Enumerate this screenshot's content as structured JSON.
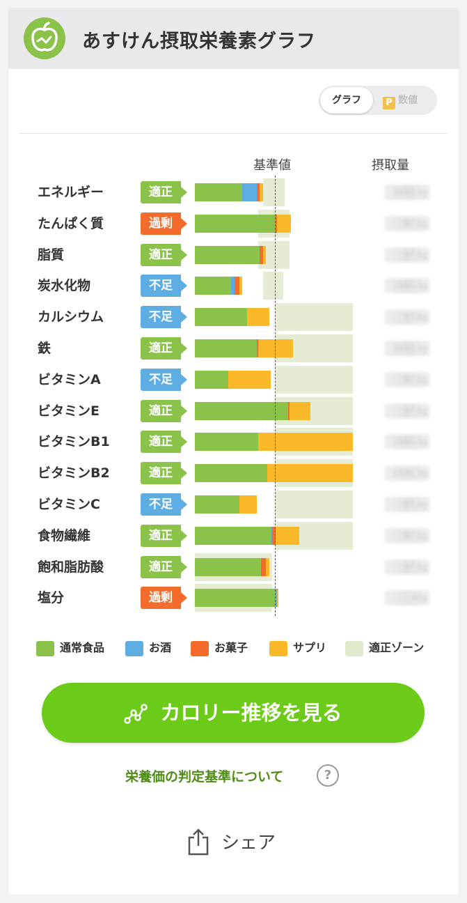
{
  "header": {
    "title": "あすけん摂取栄養素グラフ",
    "logo_icon": "apple-logo-icon"
  },
  "toggle": {
    "graph_label": "グラフ",
    "value_label": "数値",
    "value_icon": "p-icon",
    "value_icon_text": "P",
    "selected": "グラフ"
  },
  "columns": {
    "standard": "基準値",
    "intake": "摂取量"
  },
  "colors": {
    "normal_food": "#8bc34a",
    "alcohol": "#5dade2",
    "snacks": "#f36c2b",
    "supplement": "#fbb829",
    "zone": "#dfeacd",
    "status_ok": "#8bc34a",
    "status_over": "#f36c2b",
    "status_under": "#5dade2"
  },
  "nutrients": [
    {
      "name": "エネルギー",
      "status": "適正",
      "status_type": "ok",
      "intake_blurred": "2440.3g",
      "normal": 0.3,
      "alcohol": 0.09,
      "snacks": 0.02,
      "supplement": 0.02,
      "zone_from": 0.43,
      "zone_to": 0.57
    },
    {
      "name": "たんぱく質",
      "status": "過剰",
      "status_type": "over",
      "intake_blurred": "97.0g",
      "normal": 0.51,
      "alcohol": 0.0,
      "snacks": 0.01,
      "supplement": 0.09,
      "zone_from": 0.4,
      "zone_to": 0.6
    },
    {
      "name": "脂質",
      "status": "適正",
      "status_type": "ok",
      "intake_blurred": "97.0g",
      "normal": 0.41,
      "alcohol": 0.0,
      "snacks": 0.02,
      "supplement": 0.02,
      "zone_from": 0.4,
      "zone_to": 0.6
    },
    {
      "name": "炭水化物",
      "status": "不足",
      "status_type": "under",
      "intake_blurred": "2440.3g",
      "normal": 0.23,
      "alcohol": 0.02,
      "snacks": 0.03,
      "supplement": 0.02,
      "zone_from": 0.43,
      "zone_to": 0.56
    },
    {
      "name": "カルシウム",
      "status": "不足",
      "status_type": "under",
      "intake_blurred": "97.0g",
      "normal": 0.33,
      "alcohol": 0.0,
      "snacks": 0.0,
      "supplement": 0.14,
      "zone_from": 0.51,
      "zone_to": 1.0
    },
    {
      "name": "鉄",
      "status": "適正",
      "status_type": "ok",
      "intake_blurred": "2440.3g",
      "normal": 0.39,
      "alcohol": 0.0,
      "snacks": 0.01,
      "supplement": 0.22,
      "zone_from": 0.51,
      "zone_to": 1.0
    },
    {
      "name": "ビタミンA",
      "status": "不足",
      "status_type": "under",
      "intake_blurred": "97.0g",
      "normal": 0.21,
      "alcohol": 0.0,
      "snacks": 0.0,
      "supplement": 0.27,
      "zone_from": 0.51,
      "zone_to": 1.0
    },
    {
      "name": "ビタミンE",
      "status": "適正",
      "status_type": "ok",
      "intake_blurred": "97.0g",
      "normal": 0.59,
      "alcohol": 0.0,
      "snacks": 0.01,
      "supplement": 0.13,
      "zone_from": 0.51,
      "zone_to": 1.0
    },
    {
      "name": "ビタミンB1",
      "status": "適正",
      "status_type": "ok",
      "intake_blurred": "2440.3g",
      "normal": 0.4,
      "alcohol": 0.0,
      "snacks": 0.0,
      "supplement": 0.6,
      "zone_from": 0.51,
      "zone_to": 1.0
    },
    {
      "name": "ビタミンB2",
      "status": "適正",
      "status_type": "ok",
      "intake_blurred": "2440.3g",
      "normal": 0.46,
      "alcohol": 0.0,
      "snacks": 0.0,
      "supplement": 0.54,
      "zone_from": 0.51,
      "zone_to": 1.0
    },
    {
      "name": "ビタミンC",
      "status": "不足",
      "status_type": "under",
      "intake_blurred": "97.0g",
      "normal": 0.28,
      "alcohol": 0.0,
      "snacks": 0.0,
      "supplement": 0.11,
      "zone_from": 0.51,
      "zone_to": 1.0
    },
    {
      "name": "食物繊維",
      "status": "適正",
      "status_type": "ok",
      "intake_blurred": "97.0g",
      "normal": 0.48,
      "alcohol": 0.01,
      "snacks": 0.02,
      "supplement": 0.15,
      "zone_from": 0.51,
      "zone_to": 1.0
    },
    {
      "name": "飽和脂肪酸",
      "status": "適正",
      "status_type": "ok",
      "intake_blurred": "97.0g",
      "normal": 0.42,
      "alcohol": 0.0,
      "snacks": 0.03,
      "supplement": 0.02,
      "zone_from": 0.0,
      "zone_to": 0.49
    },
    {
      "name": "塩分",
      "status": "過剰",
      "status_type": "over",
      "intake_blurred": "40g",
      "normal": 0.51,
      "alcohol": 0.01,
      "snacks": 0.0,
      "supplement": 0.01,
      "zone_from": 0.0,
      "zone_to": 0.49
    }
  ],
  "legend": [
    {
      "label": "通常食品",
      "color": "#8bc34a"
    },
    {
      "label": "お酒",
      "color": "#5dade2"
    },
    {
      "label": "お菓子",
      "color": "#f36c2b"
    },
    {
      "label": "サプリ",
      "color": "#fbb829"
    },
    {
      "label": "適正ゾーン",
      "color": "#dfeacd"
    }
  ],
  "cta": {
    "label": "カロリー推移を見る",
    "icon": "trend-chart-icon"
  },
  "criteria_link": "栄養価の判定基準について",
  "help_icon_text": "?",
  "share": {
    "label": "シェア",
    "icon": "share-icon"
  }
}
